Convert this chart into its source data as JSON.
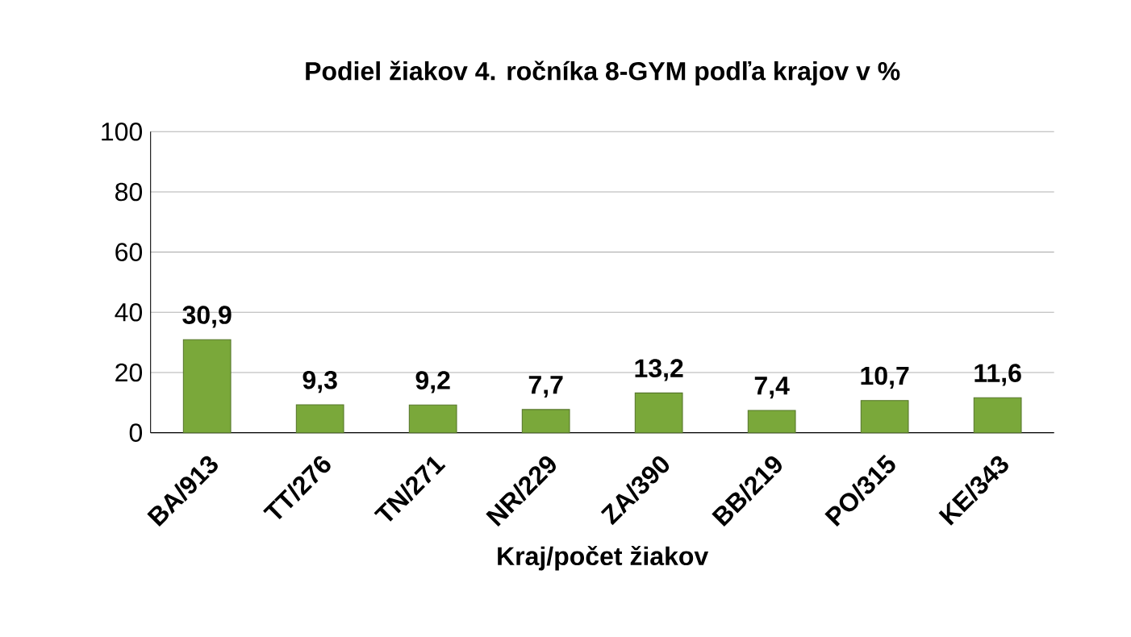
{
  "chart_data": {
    "type": "bar",
    "title": "Podiel žiakov 4. ročníka 8-GYM podľa krajov v %",
    "xlabel": "Kraj/počet žiakov",
    "categories": [
      "BA/913",
      "TT/276",
      "TN/271",
      "NR/229",
      "ZA/390",
      "BB/219",
      "PO/315",
      "KE/343"
    ],
    "values": [
      30.9,
      9.3,
      9.2,
      7.7,
      13.2,
      7.4,
      10.7,
      11.6
    ],
    "value_labels": [
      "30,9",
      "9,3",
      "9,2",
      "7,7",
      "13,2",
      "7,4",
      "10,7",
      "11,6"
    ],
    "color": "#7aa83a",
    "ylim": [
      0,
      100
    ],
    "yticks": [
      0,
      20,
      40,
      60,
      80,
      100
    ],
    "grid": "y"
  }
}
